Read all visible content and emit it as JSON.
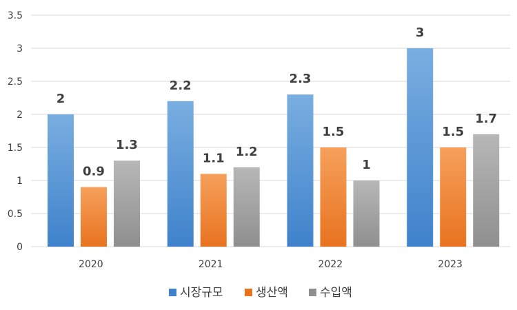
{
  "chart_data": {
    "type": "bar",
    "categories": [
      "2020",
      "2021",
      "2022",
      "2023"
    ],
    "series": [
      {
        "name": "시장규모",
        "values": [
          2,
          2.2,
          2.3,
          3
        ]
      },
      {
        "name": "생산액",
        "values": [
          0.9,
          1.1,
          1.5,
          1.5
        ]
      },
      {
        "name": "수입액",
        "values": [
          1.3,
          1.2,
          1,
          1.7
        ]
      }
    ],
    "title": "",
    "xlabel": "",
    "ylabel": "",
    "ylim": [
      0,
      3.5
    ],
    "yticks": [
      "0",
      "0.5",
      "1",
      "1.5",
      "2",
      "2.5",
      "3",
      "3.5"
    ],
    "grid": true,
    "legend_position": "bottom",
    "colors": {
      "series": [
        {
          "top": "#79aee0",
          "bottom": "#3f82cb"
        },
        {
          "top": "#f6a05b",
          "bottom": "#e8731f"
        },
        {
          "top": "#b7b7b7",
          "bottom": "#8f8f8f"
        }
      ],
      "gridline": "#d9d9d9",
      "text": "#404040"
    }
  }
}
